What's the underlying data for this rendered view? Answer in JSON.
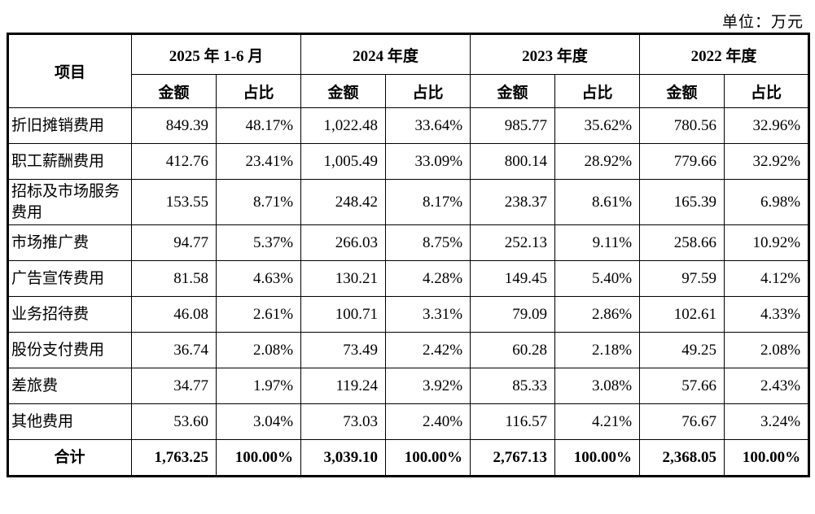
{
  "page": {
    "unit_label": "单位：万元"
  },
  "table": {
    "item_header": "项目",
    "period_headers": [
      "2025 年 1-6 月",
      "2024 年度",
      "2023 年度",
      "2022 年度"
    ],
    "sub_headers": [
      "金额",
      "占比",
      "金额",
      "占比",
      "金额",
      "占比",
      "金额",
      "占比"
    ],
    "rows": [
      {
        "label": "折旧摊销费用",
        "values": [
          "849.39",
          "48.17%",
          "1,022.48",
          "33.64%",
          "985.77",
          "35.62%",
          "780.56",
          "32.96%"
        ]
      },
      {
        "label": "职工薪酬费用",
        "values": [
          "412.76",
          "23.41%",
          "1,005.49",
          "33.09%",
          "800.14",
          "28.92%",
          "779.66",
          "32.92%"
        ]
      },
      {
        "label": "招标及市场服务费用",
        "values": [
          "153.55",
          "8.71%",
          "248.42",
          "8.17%",
          "238.37",
          "8.61%",
          "165.39",
          "6.98%"
        ]
      },
      {
        "label": "市场推广费",
        "values": [
          "94.77",
          "5.37%",
          "266.03",
          "8.75%",
          "252.13",
          "9.11%",
          "258.66",
          "10.92%"
        ]
      },
      {
        "label": "广告宣传费用",
        "values": [
          "81.58",
          "4.63%",
          "130.21",
          "4.28%",
          "149.45",
          "5.40%",
          "97.59",
          "4.12%"
        ]
      },
      {
        "label": "业务招待费",
        "values": [
          "46.08",
          "2.61%",
          "100.71",
          "3.31%",
          "79.09",
          "2.86%",
          "102.61",
          "4.33%"
        ]
      },
      {
        "label": "股份支付费用",
        "values": [
          "36.74",
          "2.08%",
          "73.49",
          "2.42%",
          "60.28",
          "2.18%",
          "49.25",
          "2.08%"
        ]
      },
      {
        "label": "差旅费",
        "values": [
          "34.77",
          "1.97%",
          "119.24",
          "3.92%",
          "85.33",
          "3.08%",
          "57.66",
          "2.43%"
        ]
      },
      {
        "label": "其他费用",
        "values": [
          "53.60",
          "3.04%",
          "73.03",
          "2.40%",
          "116.57",
          "4.21%",
          "76.67",
          "3.24%"
        ]
      }
    ],
    "total": {
      "label": "合计",
      "values": [
        "1,763.25",
        "100.00%",
        "3,039.10",
        "100.00%",
        "2,767.13",
        "100.00%",
        "2,368.05",
        "100.00%"
      ]
    }
  }
}
